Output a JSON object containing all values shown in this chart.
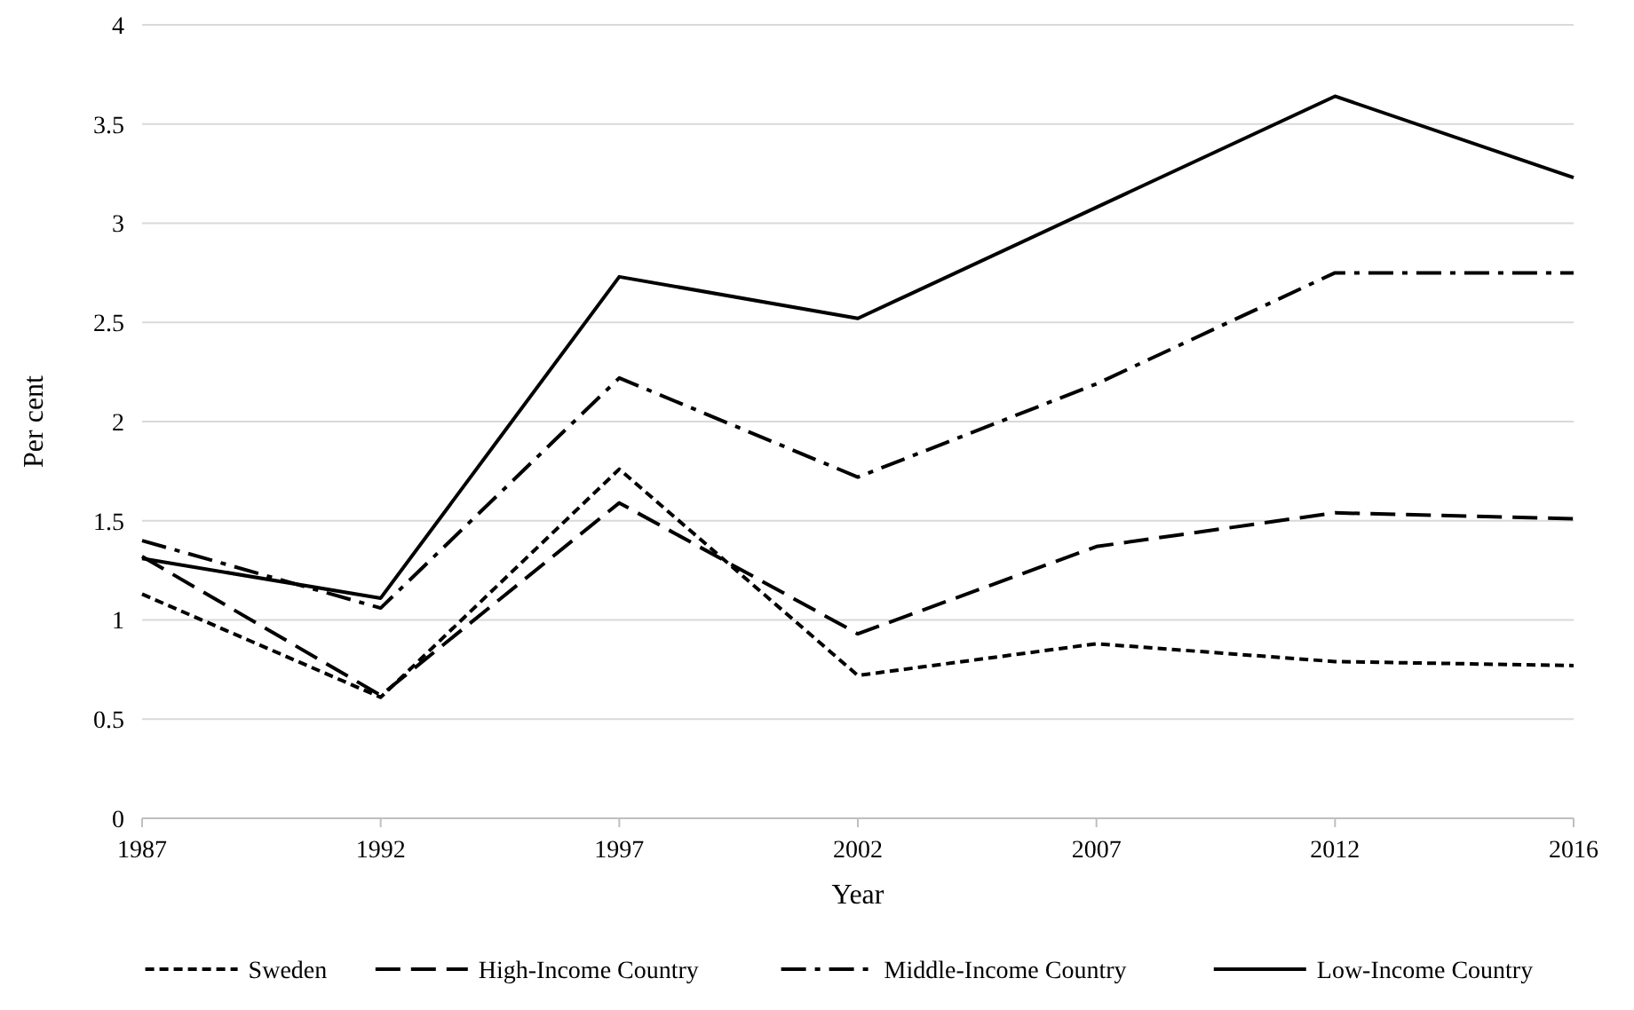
{
  "chart_data": {
    "type": "line",
    "xlabel": "Year",
    "ylabel": "Per cent",
    "categories": [
      "1987",
      "1992",
      "1997",
      "2002",
      "2007",
      "2012",
      "2016"
    ],
    "series": [
      {
        "name": "Sweden",
        "color": "#000000",
        "line_style": "dotted",
        "values": [
          1.13,
          0.61,
          1.76,
          0.72,
          0.88,
          0.79,
          0.77
        ]
      },
      {
        "name": "High-Income Country",
        "color": "#000000",
        "line_style": "dashed",
        "values": [
          1.32,
          0.62,
          1.59,
          0.93,
          1.37,
          1.54,
          1.51
        ]
      },
      {
        "name": "Middle-Income Country",
        "color": "#000000",
        "line_style": "dashdot",
        "values": [
          1.4,
          1.06,
          2.22,
          1.72,
          2.19,
          2.75,
          2.75
        ]
      },
      {
        "name": "Low-Income Country",
        "color": "#000000",
        "line_style": "solid",
        "values": [
          1.31,
          1.11,
          2.73,
          2.52,
          3.08,
          3.64,
          3.23
        ]
      }
    ],
    "ylim": [
      0,
      4
    ],
    "yticks": [
      0,
      0.5,
      1,
      1.5,
      2,
      2.5,
      3,
      3.5,
      4
    ],
    "grid": "y",
    "legend": "bottom",
    "marker": "none"
  }
}
